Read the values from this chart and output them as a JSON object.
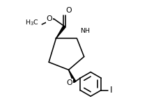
{
  "bg_color": "#ffffff",
  "line_color": "#000000",
  "lw": 1.15,
  "fs": 6.8,
  "figsize": [
    2.24,
    1.58
  ],
  "dpi": 100,
  "xlim": [
    -1,
    11
  ],
  "ylim": [
    -0.5,
    9.5
  ]
}
